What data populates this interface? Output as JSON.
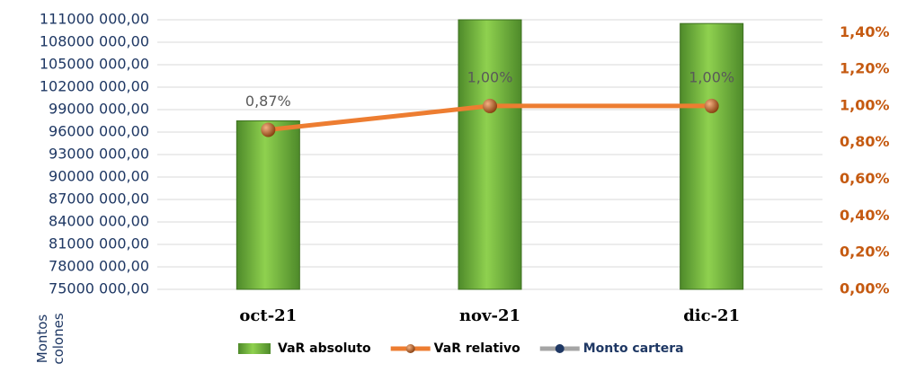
{
  "chart_data": {
    "type": "bar",
    "y_label": "Montos colones",
    "categories": [
      "oct-21",
      "nov-21",
      "dic-21"
    ],
    "series": [
      {
        "name": "VaR absoluto",
        "color": "#70ad47",
        "values": [
          97500000,
          111000000,
          110500000
        ]
      },
      {
        "name": "VaR relativo",
        "color": "#ed7d31",
        "type": "line",
        "axis": "y2",
        "values": [
          0.87,
          1.0,
          1.0
        ],
        "value_labels": [
          "0,87%",
          "1,00%",
          "1,00%"
        ]
      },
      {
        "name": "Monto cartera",
        "color": "#a5a5a5",
        "type": "line",
        "values": [
          null,
          null,
          null
        ]
      }
    ],
    "ylim": [
      75000000,
      111000000
    ],
    "yticks": [
      {
        "value": 75000000,
        "label": "75000 000,00"
      },
      {
        "value": 78000000,
        "label": "78000 000,00"
      },
      {
        "value": 81000000,
        "label": "81000 000,00"
      },
      {
        "value": 84000000,
        "label": "84000 000,00"
      },
      {
        "value": 87000000,
        "label": "87000 000,00"
      },
      {
        "value": 90000000,
        "label": "90000 000,00"
      },
      {
        "value": 93000000,
        "label": "93000 000,00"
      },
      {
        "value": 96000000,
        "label": "96000 000,00"
      },
      {
        "value": 99000000,
        "label": "99000 000,00"
      },
      {
        "value": 102000000,
        "label": "102000 000,00"
      },
      {
        "value": 105000000,
        "label": "105000 000,00"
      },
      {
        "value": 108000000,
        "label": "108000 000,00"
      },
      {
        "value": 111000000,
        "label": "111000 000,00"
      }
    ],
    "y2lim": [
      0,
      1.47
    ],
    "y2ticks": [
      {
        "value": 0,
        "label": "0,00%"
      },
      {
        "value": 0.2,
        "label": "0,20%"
      },
      {
        "value": 0.4,
        "label": "0,40%"
      },
      {
        "value": 0.6,
        "label": "0,60%"
      },
      {
        "value": 0.8,
        "label": "0,80%"
      },
      {
        "value": 1.0,
        "label": "1,00%"
      },
      {
        "value": 1.2,
        "label": "1,20%"
      },
      {
        "value": 1.4,
        "label": "1,40%"
      }
    ],
    "grid": true,
    "legend": "bottom"
  }
}
